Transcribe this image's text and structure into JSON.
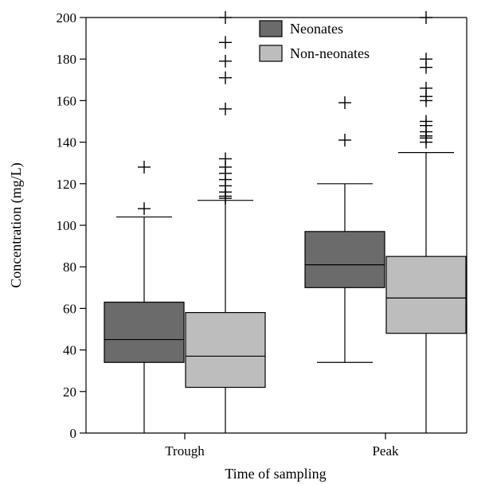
{
  "chart_data": {
    "type": "box",
    "xlabel": "Time of sampling",
    "ylabel": "Concentration (mg/L)",
    "ylim": [
      0,
      200
    ],
    "yticks": [
      0,
      20,
      40,
      60,
      80,
      100,
      120,
      140,
      160,
      180,
      200
    ],
    "categories": [
      "Trough",
      "Peak"
    ],
    "legend_position": "top-center",
    "series": [
      {
        "name": "Neonates",
        "color": "#6b6b6b",
        "boxes": [
          {
            "category": "Trough",
            "min": 0,
            "q1": 34,
            "median": 45,
            "q3": 63,
            "max": 104,
            "outliers": [
              108,
              128
            ]
          },
          {
            "category": "Peak",
            "min": 34,
            "q1": 70,
            "median": 81,
            "q3": 97,
            "max": 120,
            "outliers": [
              141,
              159
            ]
          }
        ]
      },
      {
        "name": "Non-neonates",
        "color": "#bdbdbd",
        "boxes": [
          {
            "category": "Trough",
            "min": 0,
            "q1": 22,
            "median": 37,
            "q3": 58,
            "max": 112,
            "outliers": [
              113,
              114,
              116,
              119,
              122,
              125,
              128,
              132,
              156,
              171,
              179,
              188,
              200
            ]
          },
          {
            "category": "Peak",
            "min": 0,
            "q1": 48,
            "median": 65,
            "q3": 85,
            "max": 135,
            "outliers": [
              140,
              142,
              143,
              145,
              148,
              150,
              160,
              162,
              166,
              176,
              180,
              200
            ]
          }
        ]
      }
    ]
  }
}
